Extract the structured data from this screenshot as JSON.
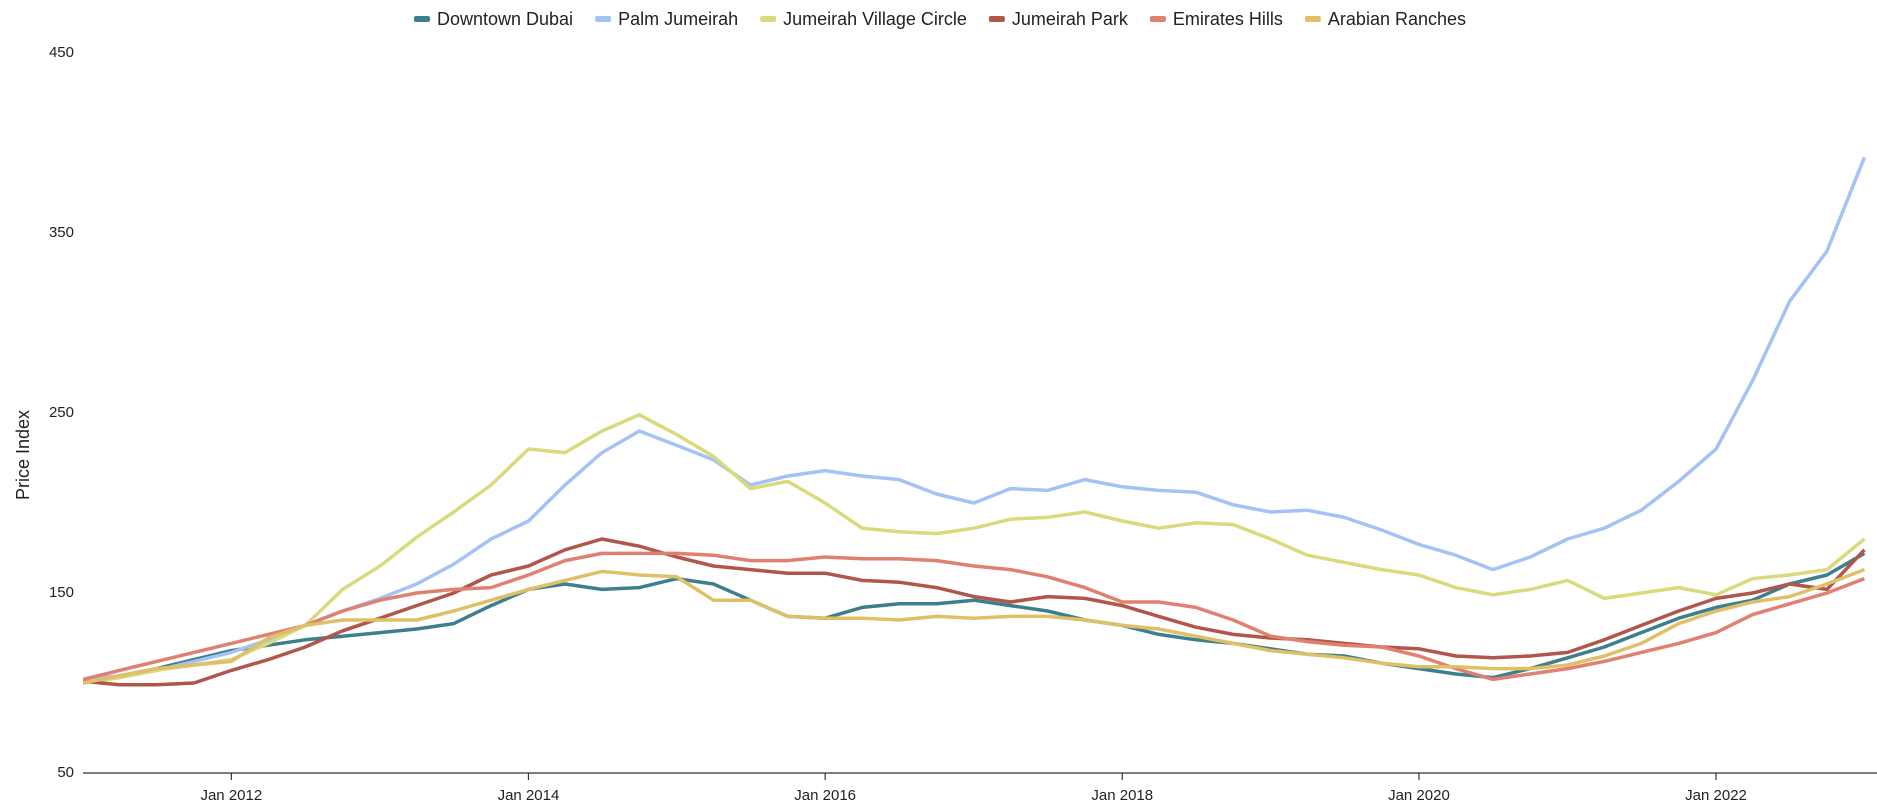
{
  "chart_data": {
    "type": "line",
    "y_label": "Price Index",
    "x": [
      "Jan 2011",
      "Apr 2011",
      "Jul 2011",
      "Oct 2011",
      "Jan 2012",
      "Apr 2012",
      "Jul 2012",
      "Oct 2012",
      "Jan 2013",
      "Apr 2013",
      "Jul 2013",
      "Oct 2013",
      "Jan 2014",
      "Apr 2014",
      "Jul 2014",
      "Oct 2014",
      "Jan 2015",
      "Apr 2015",
      "Jul 2015",
      "Oct 2015",
      "Jan 2016",
      "Apr 2016",
      "Jul 2016",
      "Oct 2016",
      "Jan 2017",
      "Apr 2017",
      "Jul 2017",
      "Oct 2017",
      "Jan 2018",
      "Apr 2018",
      "Jul 2018",
      "Oct 2018",
      "Jan 2019",
      "Apr 2019",
      "Jul 2019",
      "Oct 2019",
      "Jan 2020",
      "Apr 2020",
      "Jul 2020",
      "Oct 2020",
      "Jan 2021",
      "Apr 2021",
      "Jul 2021",
      "Oct 2021",
      "Jan 2022",
      "Apr 2022",
      "Jul 2022",
      "Oct 2022",
      "Jan 2023"
    ],
    "xlim": [
      "Jan 2011",
      "Feb 2023"
    ],
    "xticks": [
      "Jan 2012",
      "Jan 2014",
      "Jan 2016",
      "Jan 2018",
      "Jan 2020",
      "Jan 2022"
    ],
    "ylim": [
      50,
      450
    ],
    "yticks": [
      50,
      150,
      250,
      350,
      450
    ],
    "legend": "top",
    "series": [
      {
        "name": "Downtown Dubai",
        "color": "#3d7f8c",
        "values": [
          100,
          104,
          108,
          113,
          118,
          121,
          124,
          126,
          128,
          130,
          133,
          143,
          152,
          155,
          152,
          153,
          158,
          155,
          146,
          137,
          136,
          142,
          144,
          144,
          146,
          143,
          140,
          135,
          132,
          127,
          124,
          122,
          119,
          116,
          115,
          111,
          108,
          105,
          103,
          108,
          114,
          120,
          128,
          136,
          142,
          146,
          155,
          160,
          172
        ]
      },
      {
        "name": "Palm Jumeirah",
        "color": "#a4c2f4",
        "values": [
          102,
          104,
          107,
          112,
          117,
          124,
          132,
          140,
          147,
          155,
          166,
          180,
          190,
          210,
          228,
          240,
          232,
          224,
          210,
          215,
          218,
          215,
          213,
          205,
          200,
          208,
          207,
          213,
          209,
          207,
          206,
          199,
          195,
          196,
          192,
          185,
          177,
          171,
          163,
          170,
          180,
          186,
          196,
          212,
          230,
          268,
          312,
          340,
          392
        ]
      },
      {
        "name": "Jumeirah Village Circle",
        "color": "#d9d97e",
        "values": [
          100,
          103,
          107,
          110,
          113,
          122,
          132,
          152,
          165,
          181,
          195,
          210,
          230,
          228,
          240,
          249,
          238,
          226,
          208,
          212,
          200,
          186,
          184,
          183,
          186,
          191,
          192,
          195,
          190,
          186,
          189,
          188,
          180,
          171,
          167,
          163,
          160,
          153,
          149,
          152,
          157,
          147,
          150,
          153,
          149,
          158,
          160,
          163,
          180
        ]
      },
      {
        "name": "Jumeirah Park",
        "color": "#b0564a",
        "values": [
          101,
          99,
          99,
          100,
          107,
          113,
          120,
          129,
          136,
          143,
          150,
          160,
          165,
          174,
          180,
          176,
          170,
          165,
          163,
          161,
          161,
          157,
          156,
          153,
          148,
          145,
          148,
          147,
          143,
          137,
          131,
          127,
          125,
          124,
          122,
          120,
          119,
          115,
          114,
          115,
          117,
          124,
          132,
          140,
          147,
          150,
          155,
          152,
          174
        ]
      },
      {
        "name": "Emirates Hills",
        "color": "#e08070",
        "values": [
          102,
          107,
          112,
          117,
          122,
          127,
          132,
          140,
          146,
          150,
          152,
          153,
          160,
          168,
          172,
          172,
          172,
          171,
          168,
          168,
          170,
          169,
          169,
          168,
          165,
          163,
          159,
          153,
          145,
          145,
          142,
          135,
          126,
          123,
          121,
          120,
          115,
          108,
          102,
          105,
          108,
          112,
          117,
          122,
          128,
          138,
          144,
          150,
          158
        ]
      },
      {
        "name": "Arabian Ranches",
        "color": "#dfc067",
        "values": [
          100,
          104,
          108,
          110,
          112,
          125,
          132,
          135,
          135,
          135,
          140,
          146,
          152,
          157,
          162,
          160,
          159,
          146,
          146,
          137,
          136,
          136,
          135,
          137,
          136,
          137,
          137,
          135,
          132,
          130,
          126,
          122,
          118,
          116,
          114,
          111,
          109,
          109,
          108,
          108,
          110,
          115,
          122,
          133,
          140,
          145,
          148,
          155,
          163
        ]
      }
    ]
  }
}
